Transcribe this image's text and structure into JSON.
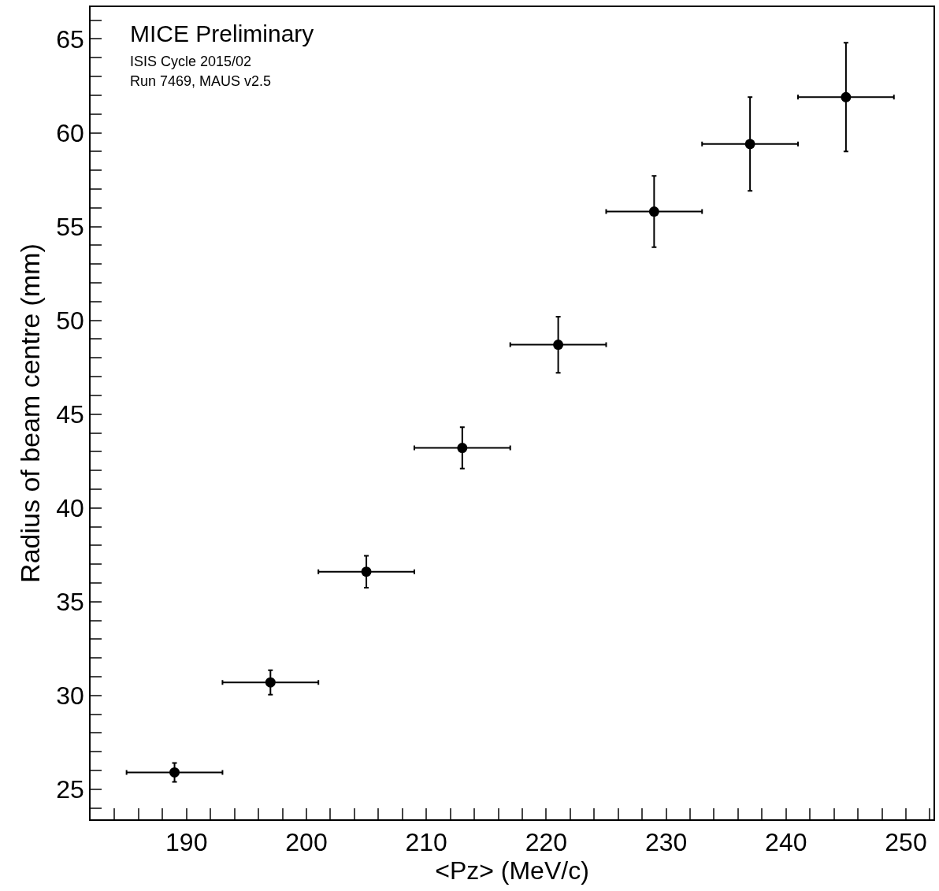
{
  "chart_data": {
    "type": "scatter",
    "xlabel": "<Pz> (MeV/c)",
    "ylabel": "Radius of beam centre (mm)",
    "annotations": [
      "MICE Preliminary",
      "ISIS Cycle 2015/02",
      "Run 7469, MAUS v2.5"
    ],
    "x": [
      189,
      197,
      205,
      213,
      221,
      229,
      237,
      245
    ],
    "values": [
      25.9,
      30.7,
      36.6,
      43.2,
      48.7,
      55.8,
      59.4,
      61.9
    ],
    "errors": [
      0.5,
      0.65,
      0.85,
      1.1,
      1.5,
      1.9,
      2.5,
      2.9
    ],
    "xerrors": [
      4,
      4,
      4,
      4,
      4,
      4,
      4,
      4
    ],
    "color": "#000000",
    "marker": "circle",
    "xlim": [
      182,
      252.3
    ],
    "ylim": [
      23.4,
      66.7
    ],
    "xticks": [
      {
        "value": 182,
        "label": null
      },
      {
        "value": 184,
        "label": null
      },
      {
        "value": 186,
        "label": null
      },
      {
        "value": 188,
        "label": null
      },
      190,
      {
        "value": 192,
        "label": null
      },
      {
        "value": 194,
        "label": null
      },
      {
        "value": 196,
        "label": null
      },
      {
        "value": 198,
        "label": null
      },
      200,
      {
        "value": 202,
        "label": null
      },
      {
        "value": 204,
        "label": null
      },
      {
        "value": 206,
        "label": null
      },
      {
        "value": 208,
        "label": null
      },
      210,
      {
        "value": 212,
        "label": null
      },
      {
        "value": 214,
        "label": null
      },
      {
        "value": 216,
        "label": null
      },
      {
        "value": 218,
        "label": null
      },
      220,
      {
        "value": 222,
        "label": null
      },
      {
        "value": 224,
        "label": null
      },
      {
        "value": 226,
        "label": null
      },
      {
        "value": 228,
        "label": null
      },
      230,
      {
        "value": 232,
        "label": null
      },
      {
        "value": 234,
        "label": null
      },
      {
        "value": 236,
        "label": null
      },
      {
        "value": 238,
        "label": null
      },
      240,
      {
        "value": 242,
        "label": null
      },
      {
        "value": 244,
        "label": null
      },
      {
        "value": 246,
        "label": null
      },
      {
        "value": 248,
        "label": null
      },
      250,
      {
        "value": 252,
        "label": null
      }
    ],
    "yticks": [
      {
        "value": 24,
        "label": null
      },
      25,
      {
        "value": 26,
        "label": null
      },
      {
        "value": 27,
        "label": null
      },
      {
        "value": 28,
        "label": null
      },
      {
        "value": 29,
        "label": null
      },
      30,
      {
        "value": 31,
        "label": null
      },
      {
        "value": 32,
        "label": null
      },
      {
        "value": 33,
        "label": null
      },
      {
        "value": 34,
        "label": null
      },
      35,
      {
        "value": 36,
        "label": null
      },
      {
        "value": 37,
        "label": null
      },
      {
        "value": 38,
        "label": null
      },
      {
        "value": 39,
        "label": null
      },
      40,
      {
        "value": 41,
        "label": null
      },
      {
        "value": 42,
        "label": null
      },
      {
        "value": 43,
        "label": null
      },
      {
        "value": 44,
        "label": null
      },
      45,
      {
        "value": 46,
        "label": null
      },
      {
        "value": 47,
        "label": null
      },
      {
        "value": 48,
        "label": null
      },
      {
        "value": 49,
        "label": null
      },
      50,
      {
        "value": 51,
        "label": null
      },
      {
        "value": 52,
        "label": null
      },
      {
        "value": 53,
        "label": null
      },
      {
        "value": 54,
        "label": null
      },
      55,
      {
        "value": 56,
        "label": null
      },
      {
        "value": 57,
        "label": null
      },
      {
        "value": 58,
        "label": null
      },
      {
        "value": 59,
        "label": null
      },
      60,
      {
        "value": 61,
        "label": null
      },
      {
        "value": 62,
        "label": null
      },
      {
        "value": 63,
        "label": null
      },
      {
        "value": 64,
        "label": null
      },
      65,
      {
        "value": 66,
        "label": null
      }
    ],
    "legend": false
  }
}
